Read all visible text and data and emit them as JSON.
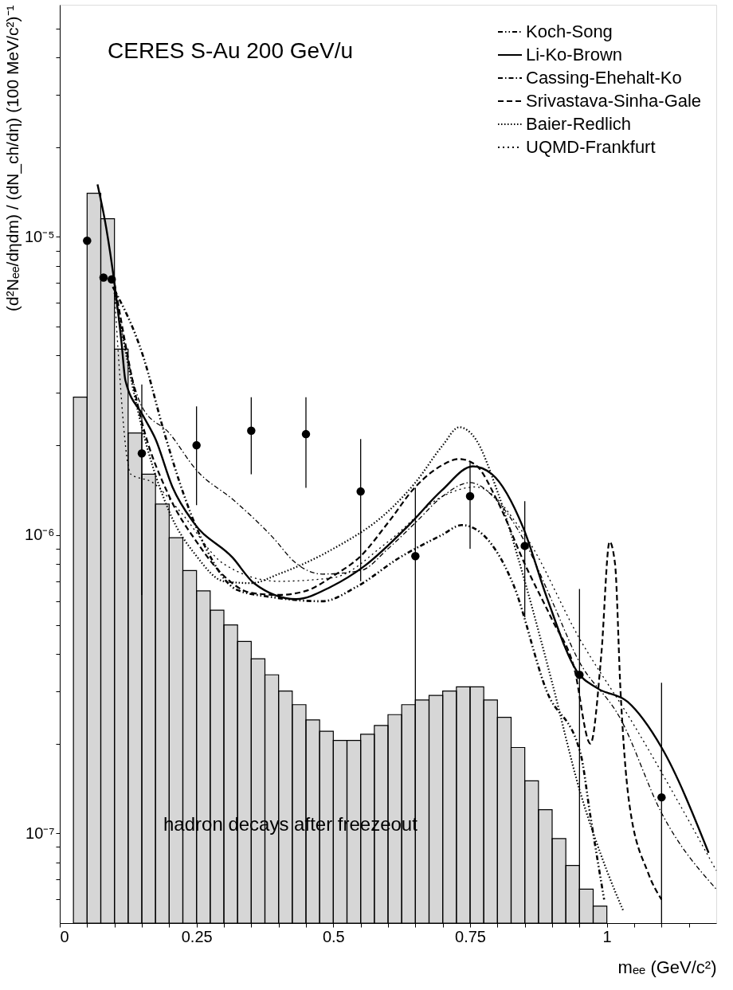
{
  "chart_data": {
    "type": "line",
    "title": "CERES    S-Au 200 GeV/u",
    "xlabel": "mₑₑ (GeV/c²)",
    "ylabel": "(d²Nₑₑ/dηdm) / (dN_ch/dη) (100 MeV/c²)⁻¹",
    "annotations": [
      "hadron decays after freezeout"
    ],
    "xlim": [
      0,
      1.2
    ],
    "ylim": [
      5e-08,
      6e-05
    ],
    "log": "y",
    "grid": false,
    "legend": "top right",
    "xticks": [
      0,
      {
        "value": 0.05,
        "label": null
      },
      {
        "value": 0.1,
        "label": null
      },
      {
        "value": 0.15,
        "label": null
      },
      {
        "value": 0.2,
        "label": null
      },
      0.25,
      {
        "value": 0.3,
        "label": null
      },
      {
        "value": 0.35,
        "label": null
      },
      {
        "value": 0.4,
        "label": null
      },
      {
        "value": 0.45,
        "label": null
      },
      0.5,
      {
        "value": 0.55,
        "label": null
      },
      {
        "value": 0.6,
        "label": null
      },
      {
        "value": 0.65,
        "label": null
      },
      {
        "value": 0.7,
        "label": null
      },
      0.75,
      {
        "value": 0.8,
        "label": null
      },
      {
        "value": 0.85,
        "label": null
      },
      {
        "value": 0.9,
        "label": null
      },
      {
        "value": 0.95,
        "label": null
      },
      1,
      {
        "value": 1.05,
        "label": null
      },
      {
        "value": 1.1,
        "label": null
      },
      {
        "value": 1.15,
        "label": null
      }
    ],
    "yticks": [
      {
        "value": 6e-08,
        "label": null
      },
      {
        "value": 7e-08,
        "label": null
      },
      {
        "value": 8e-08,
        "label": null
      },
      {
        "value": 9e-08,
        "label": null
      },
      {
        "value": 1e-07,
        "label": "10⁻⁷"
      },
      {
        "value": 2e-07,
        "label": null
      },
      {
        "value": 3e-07,
        "label": null
      },
      {
        "value": 4e-07,
        "label": null
      },
      {
        "value": 5e-07,
        "label": null
      },
      {
        "value": 6e-07,
        "label": null
      },
      {
        "value": 7e-07,
        "label": null
      },
      {
        "value": 8e-07,
        "label": null
      },
      {
        "value": 9e-07,
        "label": null
      },
      {
        "value": 1e-06,
        "label": "10⁻⁶"
      },
      {
        "value": 2e-06,
        "label": null
      },
      {
        "value": 3e-06,
        "label": null
      },
      {
        "value": 4e-06,
        "label": null
      },
      {
        "value": 5e-06,
        "label": null
      },
      {
        "value": 6e-06,
        "label": null
      },
      {
        "value": 7e-06,
        "label": null
      },
      {
        "value": 8e-06,
        "label": null
      },
      {
        "value": 9e-06,
        "label": null
      },
      {
        "value": 1e-05,
        "label": "10⁻⁵"
      },
      {
        "value": 2e-05,
        "label": null
      },
      {
        "value": 3e-05,
        "label": null
      },
      {
        "value": 4e-05,
        "label": null
      },
      {
        "value": 5e-05,
        "label": null
      }
    ],
    "series": [
      {
        "type": "histogram",
        "color": "#000000",
        "bins": [
          0.025,
          0.05,
          0.075,
          0.1,
          0.125,
          0.15,
          0.175,
          0.2,
          0.225,
          0.25,
          0.275,
          0.3,
          0.325,
          0.35,
          0.375,
          0.4,
          0.425,
          0.45,
          0.475,
          0.5,
          0.525,
          0.55,
          0.575,
          0.6,
          0.625,
          0.65,
          0.675,
          0.7,
          0.725,
          0.75,
          0.775,
          0.8,
          0.825,
          0.85,
          0.875,
          0.9,
          0.925,
          0.95,
          0.975,
          1.0
        ],
        "values": [
          2.9e-06,
          1.4e-05,
          1.15e-05,
          4.2e-06,
          2.2e-06,
          1.6e-06,
          1.27e-06,
          9.8e-07,
          7.6e-07,
          6.5e-07,
          5.6e-07,
          5e-07,
          4.4e-07,
          3.85e-07,
          3.4e-07,
          3e-07,
          2.7e-07,
          2.4e-07,
          2.2e-07,
          2.05e-07,
          2.05e-07,
          2.15e-07,
          2.3e-07,
          2.5e-07,
          2.7e-07,
          2.8e-07,
          2.9e-07,
          3e-07,
          3.1e-07,
          3.1e-07,
          2.8e-07,
          2.45e-07,
          1.94e-07,
          1.5e-07,
          1.2e-07,
          9.6e-08,
          7.8e-08,
          6.5e-08,
          5.7e-08
        ]
      },
      {
        "name": "Koch-Song",
        "line_style": "dashdotdot",
        "color": "#000000",
        "x": [
          0.097,
          0.152,
          0.19,
          0.229,
          0.269,
          0.324,
          0.386,
          0.48,
          0.542,
          0.621,
          0.698,
          0.735,
          0.766,
          0.828,
          0.89,
          0.952,
          0.97,
          0.995
        ],
        "values": [
          6.8e-06,
          4e-06,
          2.24e-06,
          1.33e-06,
          8.9e-07,
          6.55e-07,
          6.2e-07,
          6e-07,
          6.7e-07,
          8.4e-07,
          1e-06,
          1.08e-06,
          1.03e-06,
          6.9e-07,
          3e-07,
          1.85e-07,
          1.14e-07,
          6e-08
        ]
      },
      {
        "name": "Li-Ko-Brown",
        "line_style": "solid",
        "color": "#000000",
        "x": [
          0.069,
          0.085,
          0.113,
          0.12,
          0.152,
          0.175,
          0.206,
          0.245,
          0.316,
          0.355,
          0.432,
          0.495,
          0.558,
          0.636,
          0.698,
          0.755,
          0.79,
          0.847,
          0.89,
          0.945,
          0.982,
          1.038,
          1.1,
          1.186
        ],
        "values": [
          1.5e-05,
          1.07e-05,
          4.4e-06,
          3.3e-06,
          2.52e-06,
          2.1e-06,
          1.45e-06,
          1.1e-06,
          8.4e-07,
          6.9e-07,
          6.1e-07,
          6.7e-07,
          7.9e-07,
          1.07e-06,
          1.41e-06,
          1.7e-06,
          1.6e-06,
          1.06e-06,
          6.2e-07,
          3.5e-07,
          3.07e-07,
          2.76e-07,
          1.94e-07,
          8.6e-08
        ]
      },
      {
        "name": "Cassing-Ehehalt-Ko",
        "line_style": "dashdot",
        "color": "#000000",
        "x": [
          0.1,
          0.15,
          0.2,
          0.25,
          0.32,
          0.39,
          0.43,
          0.48,
          0.55,
          0.6,
          0.65,
          0.7,
          0.75,
          0.8,
          0.85,
          0.9,
          0.945,
          1.026,
          1.1,
          1.2
        ],
        "values": [
          6.5e-06,
          2.7e-06,
          2.2e-06,
          1.65e-06,
          1.3e-06,
          9.8e-07,
          8.1e-07,
          7.4e-07,
          7.6e-07,
          9e-07,
          1.1e-06,
          1.35e-06,
          1.5e-06,
          1.3e-06,
          9.5e-07,
          6e-07,
          3.9e-07,
          2.4e-07,
          1.17e-07,
          6.5e-08
        ]
      },
      {
        "name": "Srivastava-Sinha-Gale",
        "line_style": "dashed",
        "color": "#000000",
        "x": [
          0.1,
          0.15,
          0.2,
          0.25,
          0.3,
          0.35,
          0.4,
          0.45,
          0.5,
          0.55,
          0.6,
          0.65,
          0.7,
          0.73,
          0.76,
          0.8,
          0.85,
          0.9,
          0.94,
          0.97,
          0.99,
          1.005,
          1.015,
          1.025,
          1.04,
          1.075,
          1.1
        ],
        "values": [
          7e-06,
          2.4e-06,
          1.35e-06,
          9.5e-07,
          7.3e-07,
          6.4e-07,
          6.3e-07,
          6.5e-07,
          7.3e-07,
          8.5e-07,
          1.1e-06,
          1.45e-06,
          1.72e-06,
          1.8e-06,
          1.72e-06,
          1.3e-06,
          8e-07,
          5.2e-07,
          3.6e-07,
          2e-07,
          4e-07,
          9.5e-07,
          8e-07,
          3e-07,
          1.3e-07,
          7.4e-08,
          6e-08
        ]
      },
      {
        "name": "Baier-Redlich",
        "line_style": "dotted",
        "color": "#000000",
        "x": [
          0.1,
          0.15,
          0.2,
          0.25,
          0.3,
          0.35,
          0.4,
          0.5,
          0.6,
          0.65,
          0.7,
          0.73,
          0.76,
          0.8,
          0.85,
          0.9,
          0.95,
          1.0,
          1.03
        ],
        "values": [
          6.5e-06,
          2.3e-06,
          1.2e-06,
          8.5e-07,
          7e-07,
          6.9e-07,
          7.4e-07,
          9e-07,
          1.2e-06,
          1.5e-06,
          2e-06,
          2.3e-06,
          2.1e-06,
          1.4e-06,
          7e-07,
          3.2e-07,
          1.4e-07,
          7.5e-08,
          5.5e-08
        ]
      },
      {
        "name": "UQMD-Frankfurt",
        "line_style": "sparse",
        "color": "#000000",
        "x": [
          0.1,
          0.13,
          0.17,
          0.22,
          0.3,
          0.4,
          0.5,
          0.6,
          0.7,
          0.76,
          0.85,
          0.95,
          1.05,
          1.15,
          1.2
        ],
        "values": [
          6.5e-06,
          1.6e-06,
          1.5e-06,
          1.2e-06,
          8e-07,
          7e-07,
          7.2e-07,
          9.5e-07,
          1.35e-06,
          1.45e-06,
          1e-06,
          4.5e-07,
          2.3e-07,
          1.1e-07,
          7.5e-08
        ]
      },
      {
        "type": "scatter",
        "marker": "circle",
        "color": "#000000",
        "x": [
          0.05,
          0.08,
          0.095,
          0.15,
          0.25,
          0.35,
          0.45,
          0.55,
          0.65,
          0.75,
          0.85,
          0.95,
          1.1
        ],
        "values": [
          9.7e-06,
          7.3e-06,
          7.2e-06,
          1.88e-06,
          2e-06,
          2.24e-06,
          2.18e-06,
          1.4e-06,
          8.5e-07,
          1.35e-06,
          9.2e-07,
          3.4e-07,
          1.32e-07
        ],
        "errors": [
          null,
          null,
          null,
          [
            6.3e-07,
            3.2e-06
          ],
          [
            1.26e-06,
            2.7e-06
          ],
          [
            1.6e-06,
            2.9e-06
          ],
          [
            1.44e-06,
            2.9e-06
          ],
          [
            7e-07,
            2.1e-06
          ],
          [
            1.05e-07,
            1.44e-06
          ],
          [
            9e-07,
            1.75e-06
          ],
          [
            5.3e-07,
            1.3e-06
          ],
          [
            5e-08,
            6.6e-07
          ],
          [
            5e-08,
            3.2e-07
          ]
        ]
      }
    ]
  }
}
